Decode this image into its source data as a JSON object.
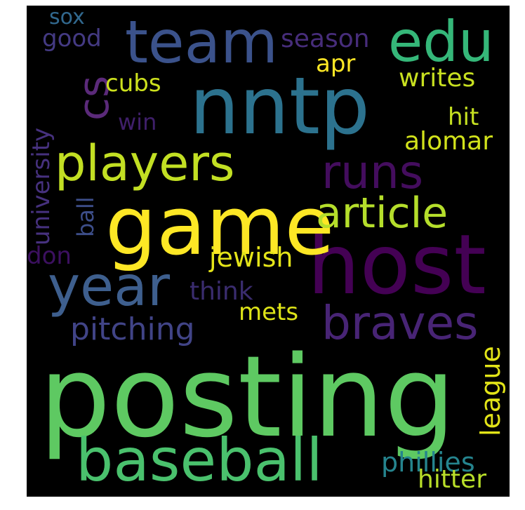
{
  "words": [
    {
      "key": "posting",
      "text": "posting",
      "color": "#5ec962"
    },
    {
      "key": "host",
      "text": "host",
      "color": "#440154"
    },
    {
      "key": "game",
      "text": "game",
      "color": "#fde725"
    },
    {
      "key": "nntp",
      "text": "nntp",
      "color": "#2c728e"
    },
    {
      "key": "baseball",
      "text": "baseball",
      "color": "#4ac16d"
    },
    {
      "key": "team",
      "text": "team",
      "color": "#3b528b"
    },
    {
      "key": "edu",
      "text": "edu",
      "color": "#35b779"
    },
    {
      "key": "year",
      "text": "year",
      "color": "#3e5f8e"
    },
    {
      "key": "players",
      "text": "players",
      "color": "#c2df23"
    },
    {
      "key": "braves",
      "text": "braves",
      "color": "#482475"
    },
    {
      "key": "runs",
      "text": "runs",
      "color": "#440d5e"
    },
    {
      "key": "article",
      "text": "article",
      "color": "#b5de2b"
    },
    {
      "key": "cs",
      "text": "cs",
      "color": "#5b2a7a"
    },
    {
      "key": "pitching",
      "text": "pitching",
      "color": "#414487"
    },
    {
      "key": "jewish",
      "text": "jewish",
      "color": "#e4e419"
    },
    {
      "key": "phillies",
      "text": "phillies",
      "color": "#25848e"
    },
    {
      "key": "hitter",
      "text": "hitter",
      "color": "#b8de29"
    },
    {
      "key": "season",
      "text": "season",
      "color": "#472d7b"
    },
    {
      "key": "writes",
      "text": "writes",
      "color": "#c8e020"
    },
    {
      "key": "alomar",
      "text": "alomar",
      "color": "#d2e21b"
    },
    {
      "key": "think",
      "text": "think",
      "color": "#3a2c6e"
    },
    {
      "key": "mets",
      "text": "mets",
      "color": "#dde318"
    },
    {
      "key": "good",
      "text": "good",
      "color": "#443a83"
    },
    {
      "key": "apr",
      "text": "apr",
      "color": "#fde725"
    },
    {
      "key": "hit",
      "text": "hit",
      "color": "#c5e021"
    },
    {
      "key": "cubs",
      "text": "cubs",
      "color": "#cde11d"
    },
    {
      "key": "win",
      "text": "win",
      "color": "#3f1f6a"
    },
    {
      "key": "don",
      "text": "don",
      "color": "#3c1060"
    },
    {
      "key": "sox",
      "text": "sox",
      "color": "#31688e"
    },
    {
      "key": "university",
      "text": "university",
      "color": "#46317e"
    },
    {
      "key": "ball",
      "text": "ball",
      "color": "#3d4e8a"
    },
    {
      "key": "league",
      "text": "league",
      "color": "#e2e418"
    }
  ]
}
